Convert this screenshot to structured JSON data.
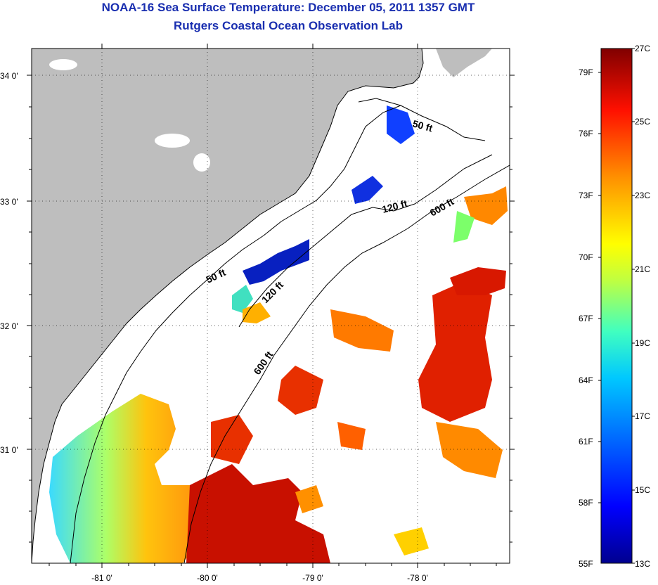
{
  "header": {
    "title": "NOAA-16 Sea Surface Temperature:  December 05, 2011 1357 GMT",
    "subtitle": "Rutgers Coastal Ocean Observation Lab"
  },
  "map": {
    "lat_ticks": [
      "34 0'",
      "33 0'",
      "32 0'",
      "31 0'"
    ],
    "lon_ticks": [
      "-81 0'",
      "-80 0'",
      "-79 0'",
      "-78 0'"
    ],
    "lat_range": [
      30.2,
      34.2
    ],
    "lon_range": [
      -81.6,
      -77.1
    ],
    "contour_labels": [
      {
        "text": "50 ft",
        "kind": "depth-50-north"
      },
      {
        "text": "50 ft",
        "kind": "depth-50-south"
      },
      {
        "text": "120 ft",
        "kind": "depth-120-north"
      },
      {
        "text": "120 ft",
        "kind": "depth-120-south"
      },
      {
        "text": "600 ft",
        "kind": "depth-600-north"
      },
      {
        "text": "600 ft",
        "kind": "depth-600-south"
      }
    ],
    "land_color": "#bebebe",
    "water_color": "#ffffff"
  },
  "colorbar": {
    "fahrenheit_labels": [
      "79F",
      "76F",
      "73F",
      "70F",
      "67F",
      "64F",
      "61F",
      "58F",
      "55F"
    ],
    "celsius_labels": [
      "27C",
      "25C",
      "23C",
      "21C",
      "19C",
      "17C",
      "15C",
      "13C"
    ],
    "range_c": [
      13,
      27
    ],
    "colors": [
      "#00008f",
      "#0000ff",
      "#0080ff",
      "#00ffff",
      "#80ff80",
      "#ffff00",
      "#ff8000",
      "#ff0000",
      "#800000"
    ]
  }
}
